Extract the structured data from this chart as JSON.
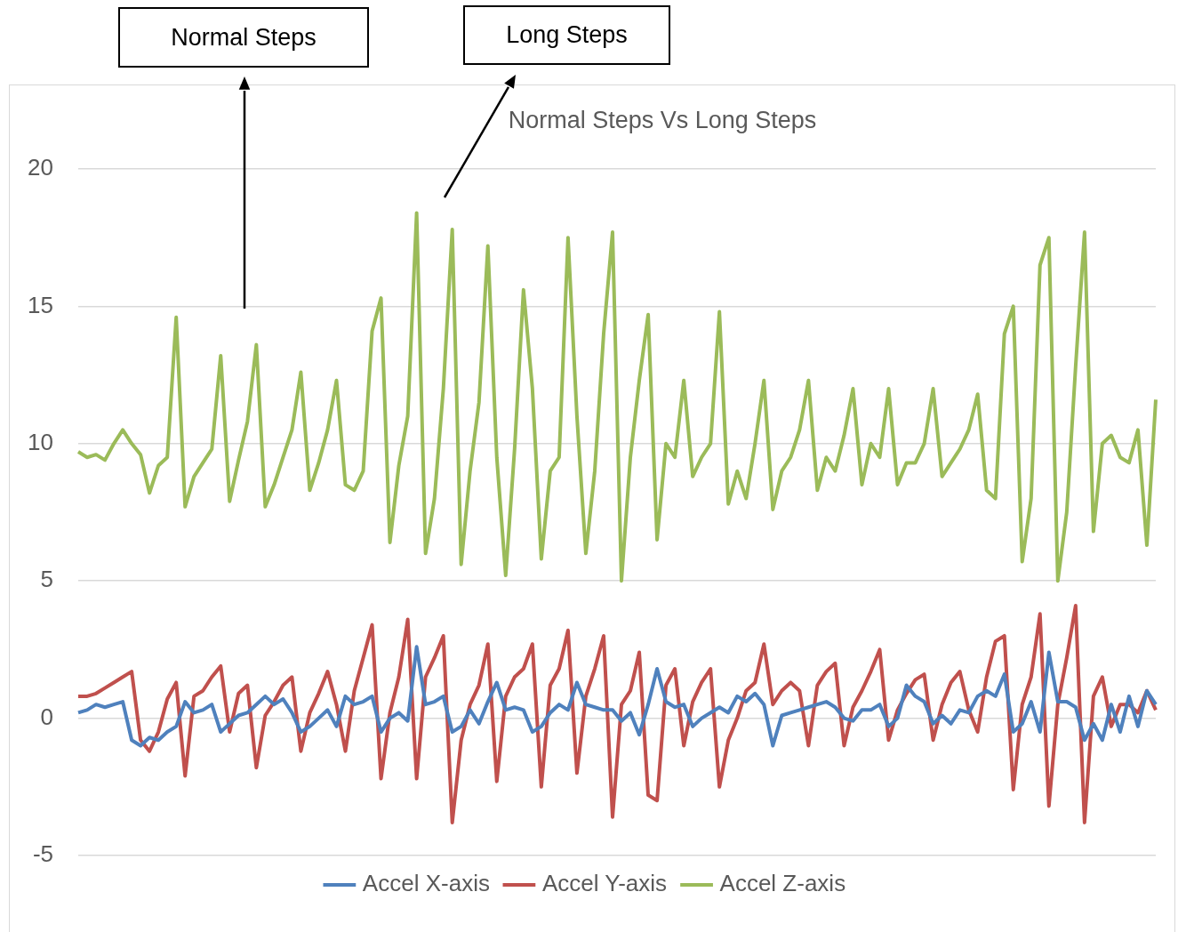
{
  "chart_data": {
    "type": "line",
    "title": "Normal Steps Vs Long Steps",
    "annotations": [
      "Normal Steps",
      "Long Steps"
    ],
    "categories": [
      null,
      null,
      null,
      null,
      null,
      null,
      null,
      null,
      null,
      null,
      null,
      null,
      null,
      null,
      null,
      null,
      null,
      null,
      null,
      null,
      null,
      null,
      null,
      null,
      null,
      null,
      null,
      null,
      null,
      null,
      null,
      null,
      null,
      null,
      null,
      null,
      null,
      null,
      null,
      null,
      null,
      null,
      null,
      null,
      null,
      null,
      null,
      null,
      null,
      null,
      null,
      null,
      null,
      null,
      null,
      null,
      null,
      null,
      null,
      null,
      null,
      null,
      null,
      null,
      null,
      null,
      null,
      null,
      null,
      null,
      null,
      null,
      null,
      null,
      null,
      null,
      null,
      null,
      null,
      null,
      null,
      null,
      null,
      null,
      null,
      null,
      null,
      null,
      null,
      null,
      null,
      null,
      null,
      null,
      null,
      null,
      null,
      null,
      null,
      null,
      null,
      null,
      null,
      null,
      null,
      null,
      null,
      null,
      null,
      null,
      null,
      null,
      null,
      null,
      null,
      null,
      null,
      null,
      null,
      null,
      null,
      null
    ],
    "ylim": [
      -5,
      20
    ],
    "yticks": [
      -5,
      0,
      5,
      10,
      15,
      20
    ],
    "grid": "y",
    "legend": "bottom",
    "tick_labels": "y",
    "series": [
      {
        "name": "Accel X-axis",
        "color": "#4f81bd",
        "values": [
          0.2,
          0.3,
          0.5,
          0.4,
          0.5,
          0.6,
          -0.8,
          -1.0,
          -0.7,
          -0.8,
          -0.5,
          -0.3,
          0.6,
          0.2,
          0.3,
          0.5,
          -0.5,
          -0.2,
          0.1,
          0.2,
          0.5,
          0.8,
          0.5,
          0.7,
          0.2,
          -0.5,
          -0.3,
          0,
          0.3,
          -0.3,
          0.8,
          0.5,
          0.6,
          0.8,
          -0.5,
          0,
          0.2,
          -0.1,
          2.6,
          0.5,
          0.6,
          0.8,
          -0.5,
          -0.3,
          0.3,
          -0.2,
          0.6,
          1.3,
          0.3,
          0.4,
          0.3,
          -0.5,
          -0.3,
          0.2,
          0.5,
          0.3,
          1.3,
          0.5,
          0.4,
          0.3,
          0.3,
          -0.1,
          0.2,
          -0.6,
          0.5,
          1.8,
          0.6,
          0.4,
          0.5,
          -0.3,
          0,
          0.2,
          0.4,
          0.2,
          0.8,
          0.6,
          0.9,
          0.5,
          -1.0,
          0.1,
          0.2,
          0.3,
          0.4,
          0.5,
          0.6,
          0.4,
          0,
          -0.1,
          0.3,
          0.3,
          0.5,
          -0.3,
          0,
          1.2,
          0.8,
          0.6,
          -0.2,
          0.1,
          -0.2,
          0.3,
          0.2,
          0.8,
          1.0,
          0.8,
          1.6,
          -0.5,
          -0.2,
          0.6,
          -0.5,
          2.4,
          0.6,
          0.6,
          0.4,
          -0.8,
          -0.2,
          -0.8,
          0.5,
          -0.5,
          0.8,
          -0.3,
          1.0,
          0.5
        ]
      },
      {
        "name": "Accel Y-axis",
        "color": "#c0504d",
        "values": [
          0.8,
          0.8,
          0.9,
          1.1,
          1.3,
          1.5,
          1.7,
          -0.8,
          -1.2,
          -0.5,
          0.7,
          1.3,
          -2.1,
          0.8,
          1.0,
          1.5,
          1.9,
          -0.5,
          0.9,
          1.2,
          -1.8,
          0.1,
          0.6,
          1.2,
          1.5,
          -1.2,
          0.2,
          0.9,
          1.7,
          0.5,
          -1.2,
          1.0,
          2.2,
          3.4,
          -2.2,
          0.2,
          1.5,
          3.6,
          -2.2,
          1.5,
          2.2,
          3.0,
          -3.8,
          -0.8,
          0.5,
          1.2,
          2.7,
          -2.3,
          0.8,
          1.5,
          1.8,
          2.7,
          -2.5,
          1.2,
          1.8,
          3.2,
          -2.0,
          0.8,
          1.8,
          3.0,
          -3.6,
          0.5,
          1.0,
          2.4,
          -2.8,
          -3.0,
          1.2,
          1.8,
          -1.0,
          0.6,
          1.3,
          1.8,
          -2.5,
          -0.8,
          0,
          1.0,
          1.3,
          2.7,
          0.5,
          1.0,
          1.3,
          1.0,
          -1.0,
          1.2,
          1.7,
          2.0,
          -1.0,
          0.4,
          1.0,
          1.7,
          2.5,
          -0.8,
          0.3,
          0.9,
          1.4,
          1.6,
          -0.8,
          0.5,
          1.3,
          1.7,
          0.3,
          -0.5,
          1.5,
          2.8,
          3.0,
          -2.6,
          0.5,
          1.5,
          3.8,
          -3.2,
          0.5,
          2.2,
          4.1,
          -3.8,
          0.8,
          1.5,
          -0.3,
          0.5,
          0.5,
          0.2,
          1.0,
          0.3
        ]
      },
      {
        "name": "Accel Z-axis",
        "color": "#9bbb59",
        "values": [
          9.7,
          9.5,
          9.6,
          9.4,
          10.0,
          10.5,
          10.0,
          9.6,
          8.2,
          9.2,
          9.5,
          14.6,
          7.7,
          8.8,
          9.3,
          9.8,
          13.2,
          7.9,
          9.4,
          10.8,
          13.6,
          7.7,
          8.5,
          9.5,
          10.5,
          12.6,
          8.3,
          9.3,
          10.5,
          12.3,
          8.5,
          8.3,
          9.0,
          14.1,
          15.3,
          6.4,
          9.2,
          11.0,
          18.4,
          6.0,
          8.0,
          12.0,
          17.8,
          5.6,
          9.0,
          11.5,
          17.2,
          9.5,
          5.2,
          9.8,
          15.6,
          12.0,
          5.8,
          9.0,
          9.5,
          17.5,
          11.0,
          6.0,
          9.0,
          14.0,
          17.7,
          5.0,
          9.5,
          12.3,
          14.7,
          6.5,
          10.0,
          9.5,
          12.3,
          8.8,
          9.5,
          10.0,
          14.8,
          7.8,
          9.0,
          8.0,
          10.0,
          12.3,
          7.6,
          9.0,
          9.5,
          10.5,
          12.3,
          8.3,
          9.5,
          9.0,
          10.3,
          12.0,
          8.5,
          10.0,
          9.5,
          12.0,
          8.5,
          9.3,
          9.3,
          10.0,
          12.0,
          8.8,
          9.3,
          9.8,
          10.5,
          11.8,
          8.3,
          8.0,
          14.0,
          15.0,
          5.7,
          8.0,
          16.5,
          17.5,
          5.0,
          7.5,
          12.8,
          17.7,
          6.8,
          10.0,
          10.3,
          9.5,
          9.3,
          10.5,
          6.3,
          11.6
        ]
      }
    ]
  }
}
